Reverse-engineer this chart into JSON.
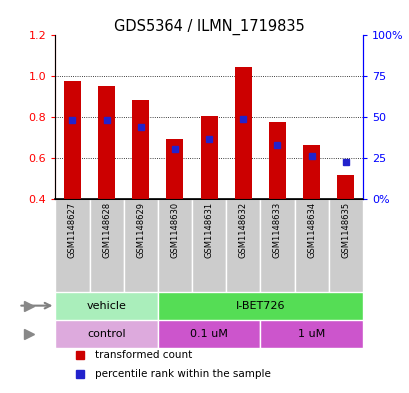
{
  "title": "GDS5364 / ILMN_1719835",
  "samples": [
    "GSM1148627",
    "GSM1148628",
    "GSM1148629",
    "GSM1148630",
    "GSM1148631",
    "GSM1148632",
    "GSM1148633",
    "GSM1148634",
    "GSM1148635"
  ],
  "red_values": [
    0.975,
    0.955,
    0.885,
    0.695,
    0.805,
    1.045,
    0.775,
    0.665,
    0.52
  ],
  "blue_values": [
    0.787,
    0.787,
    0.753,
    0.647,
    0.693,
    0.793,
    0.667,
    0.613,
    0.58
  ],
  "ylim_left": [
    0.4,
    1.2
  ],
  "ylim_right": [
    0,
    100
  ],
  "yticks_left": [
    0.4,
    0.6,
    0.8,
    1.0,
    1.2
  ],
  "yticks_right": [
    0,
    25,
    50,
    75,
    100
  ],
  "bar_bottom": 0.4,
  "red_color": "#cc0000",
  "blue_color": "#2222cc",
  "agent_groups": [
    {
      "label": "vehicle",
      "start": 0,
      "end": 3,
      "color": "#aaeebb"
    },
    {
      "label": "I-BET726",
      "start": 3,
      "end": 9,
      "color": "#55dd55"
    }
  ],
  "dose_groups": [
    {
      "label": "control",
      "start": 0,
      "end": 3,
      "color": "#ddaadd"
    },
    {
      "label": "0.1 uM",
      "start": 3,
      "end": 6,
      "color": "#cc55cc"
    },
    {
      "label": "1 uM",
      "start": 6,
      "end": 9,
      "color": "#cc55cc"
    }
  ],
  "legend_red": "transformed count",
  "legend_blue": "percentile rank within the sample",
  "bar_width": 0.5,
  "sample_bg": "#cccccc"
}
